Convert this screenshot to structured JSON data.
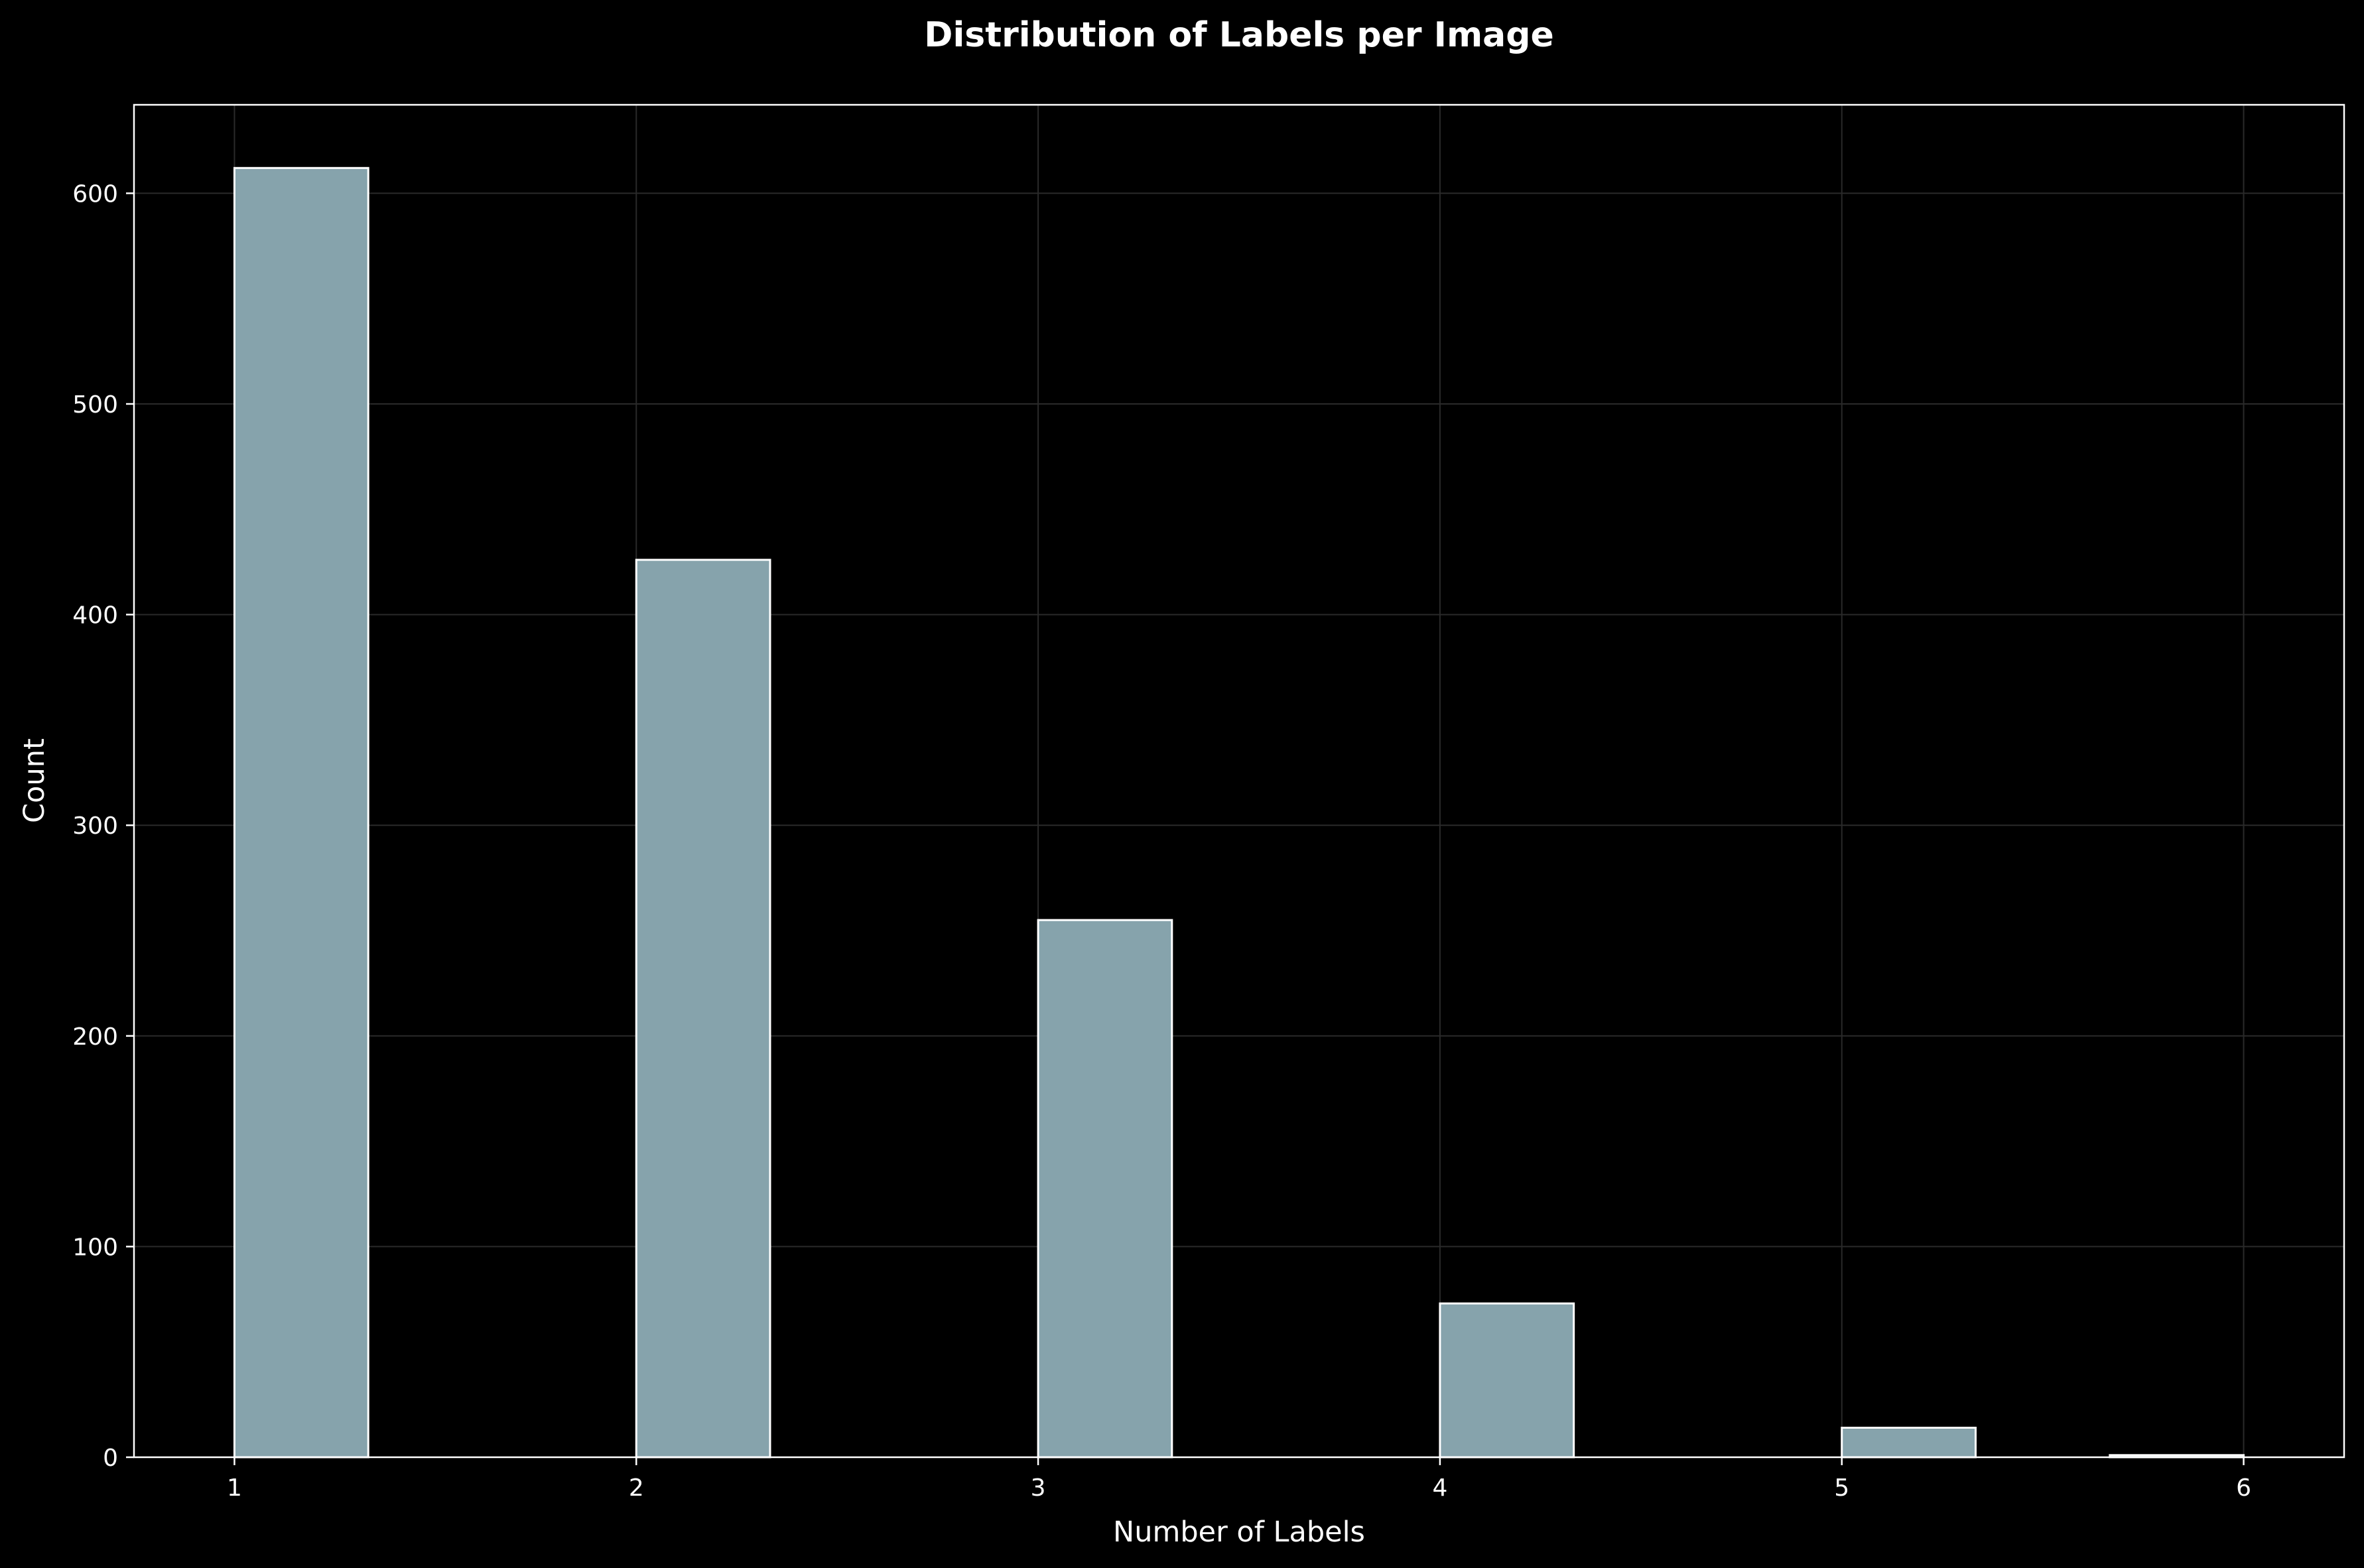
{
  "chart_data": {
    "type": "bar",
    "title": "Distribution of Labels per Image",
    "xlabel": "Number of Labels",
    "ylabel": "Count",
    "xlim": [
      0.75,
      6.25
    ],
    "ylim": [
      0,
      642
    ],
    "x_ticks": [
      1,
      2,
      3,
      4,
      5,
      6
    ],
    "y_ticks": [
      0,
      100,
      200,
      300,
      400,
      500,
      600
    ],
    "grid": true,
    "bars": [
      {
        "x_start": 1.0,
        "x_end": 1.333,
        "value": 612
      },
      {
        "x_start": 2.0,
        "x_end": 2.333,
        "value": 426
      },
      {
        "x_start": 3.0,
        "x_end": 3.333,
        "value": 255
      },
      {
        "x_start": 4.0,
        "x_end": 4.333,
        "value": 73
      },
      {
        "x_start": 5.0,
        "x_end": 5.333,
        "value": 14
      },
      {
        "x_start": 5.667,
        "x_end": 6.0,
        "value": 1
      }
    ],
    "bar_fill": "#86a3ac",
    "bar_edge": "#ffffff",
    "background": "#000000",
    "grid_color": "#2a2a2a"
  }
}
